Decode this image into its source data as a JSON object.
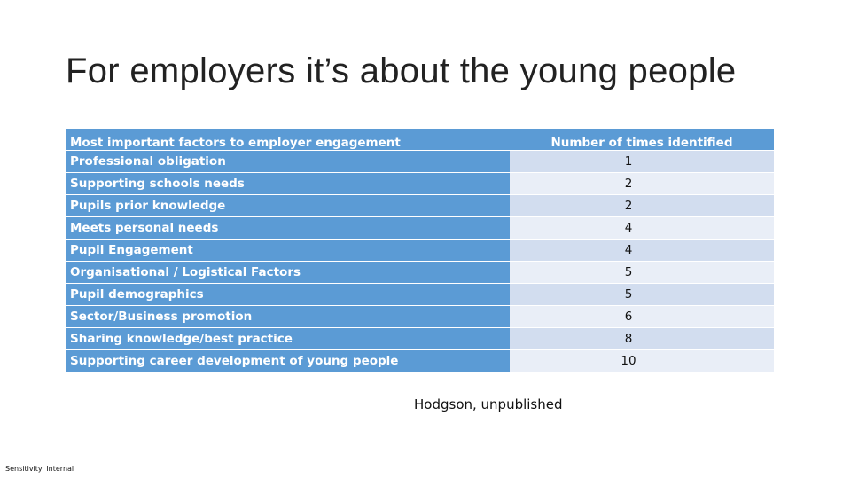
{
  "slide": {
    "title": "For employers it’s about the young people",
    "table": {
      "headers": [
        "Most important factors to employer engagement",
        "Number of times identified"
      ],
      "rows": [
        {
          "factor": "Professional obligation",
          "count": "1"
        },
        {
          "factor": "Supporting schools needs",
          "count": "2"
        },
        {
          "factor": "Pupils prior knowledge",
          "count": "2"
        },
        {
          "factor": "Meets personal needs",
          "count": "4"
        },
        {
          "factor": "Pupil Engagement",
          "count": "4"
        },
        {
          "factor": "Organisational / Logistical Factors",
          "count": "5"
        },
        {
          "factor": "Pupil demographics",
          "count": "5"
        },
        {
          "factor": "Sector/Business promotion",
          "count": "6"
        },
        {
          "factor": "Sharing knowledge/best practice",
          "count": "8"
        },
        {
          "factor": "Supporting career development of young people",
          "count": "10"
        }
      ]
    },
    "source": "Hodgson, unpublished",
    "sensitivity": "Sensitivity: Internal"
  },
  "colors": {
    "header_blue": "#5b9bd5",
    "band_dark": "#d2ddef",
    "band_light": "#e9eef7"
  }
}
